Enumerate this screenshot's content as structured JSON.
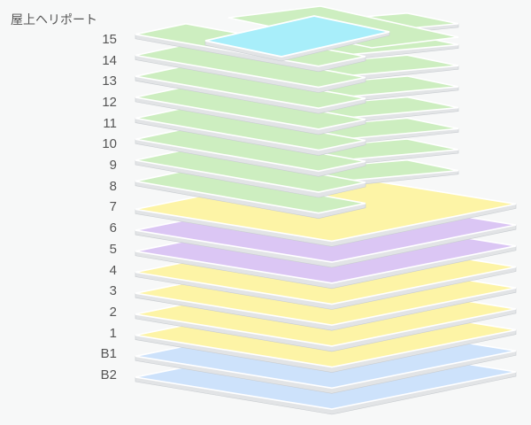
{
  "heliport_label": "屋上ヘリポート",
  "colors": {
    "green": "#cdeec0",
    "yellow": "#fdf4a6",
    "purple": "#dbc6f4",
    "blue": "#cde2fb",
    "heliport": "#a8eefa",
    "edge": "#ffffff",
    "side": "#e2e4e6",
    "outline": "#c9cdd1"
  },
  "floors": [
    {
      "label": "15",
      "color": "green"
    },
    {
      "label": "14",
      "color": "green"
    },
    {
      "label": "13",
      "color": "green"
    },
    {
      "label": "12",
      "color": "green"
    },
    {
      "label": "11",
      "color": "green"
    },
    {
      "label": "10",
      "color": "green"
    },
    {
      "label": "9",
      "color": "green"
    },
    {
      "label": "8",
      "color": "green"
    },
    {
      "label": "7",
      "color": "yellow"
    },
    {
      "label": "6",
      "color": "purple"
    },
    {
      "label": "5",
      "color": "purple"
    },
    {
      "label": "4",
      "color": "yellow"
    },
    {
      "label": "3",
      "color": "yellow"
    },
    {
      "label": "2",
      "color": "yellow"
    },
    {
      "label": "1",
      "color": "yellow"
    },
    {
      "label": "B1",
      "color": "blue"
    },
    {
      "label": "B2",
      "color": "blue"
    }
  ]
}
